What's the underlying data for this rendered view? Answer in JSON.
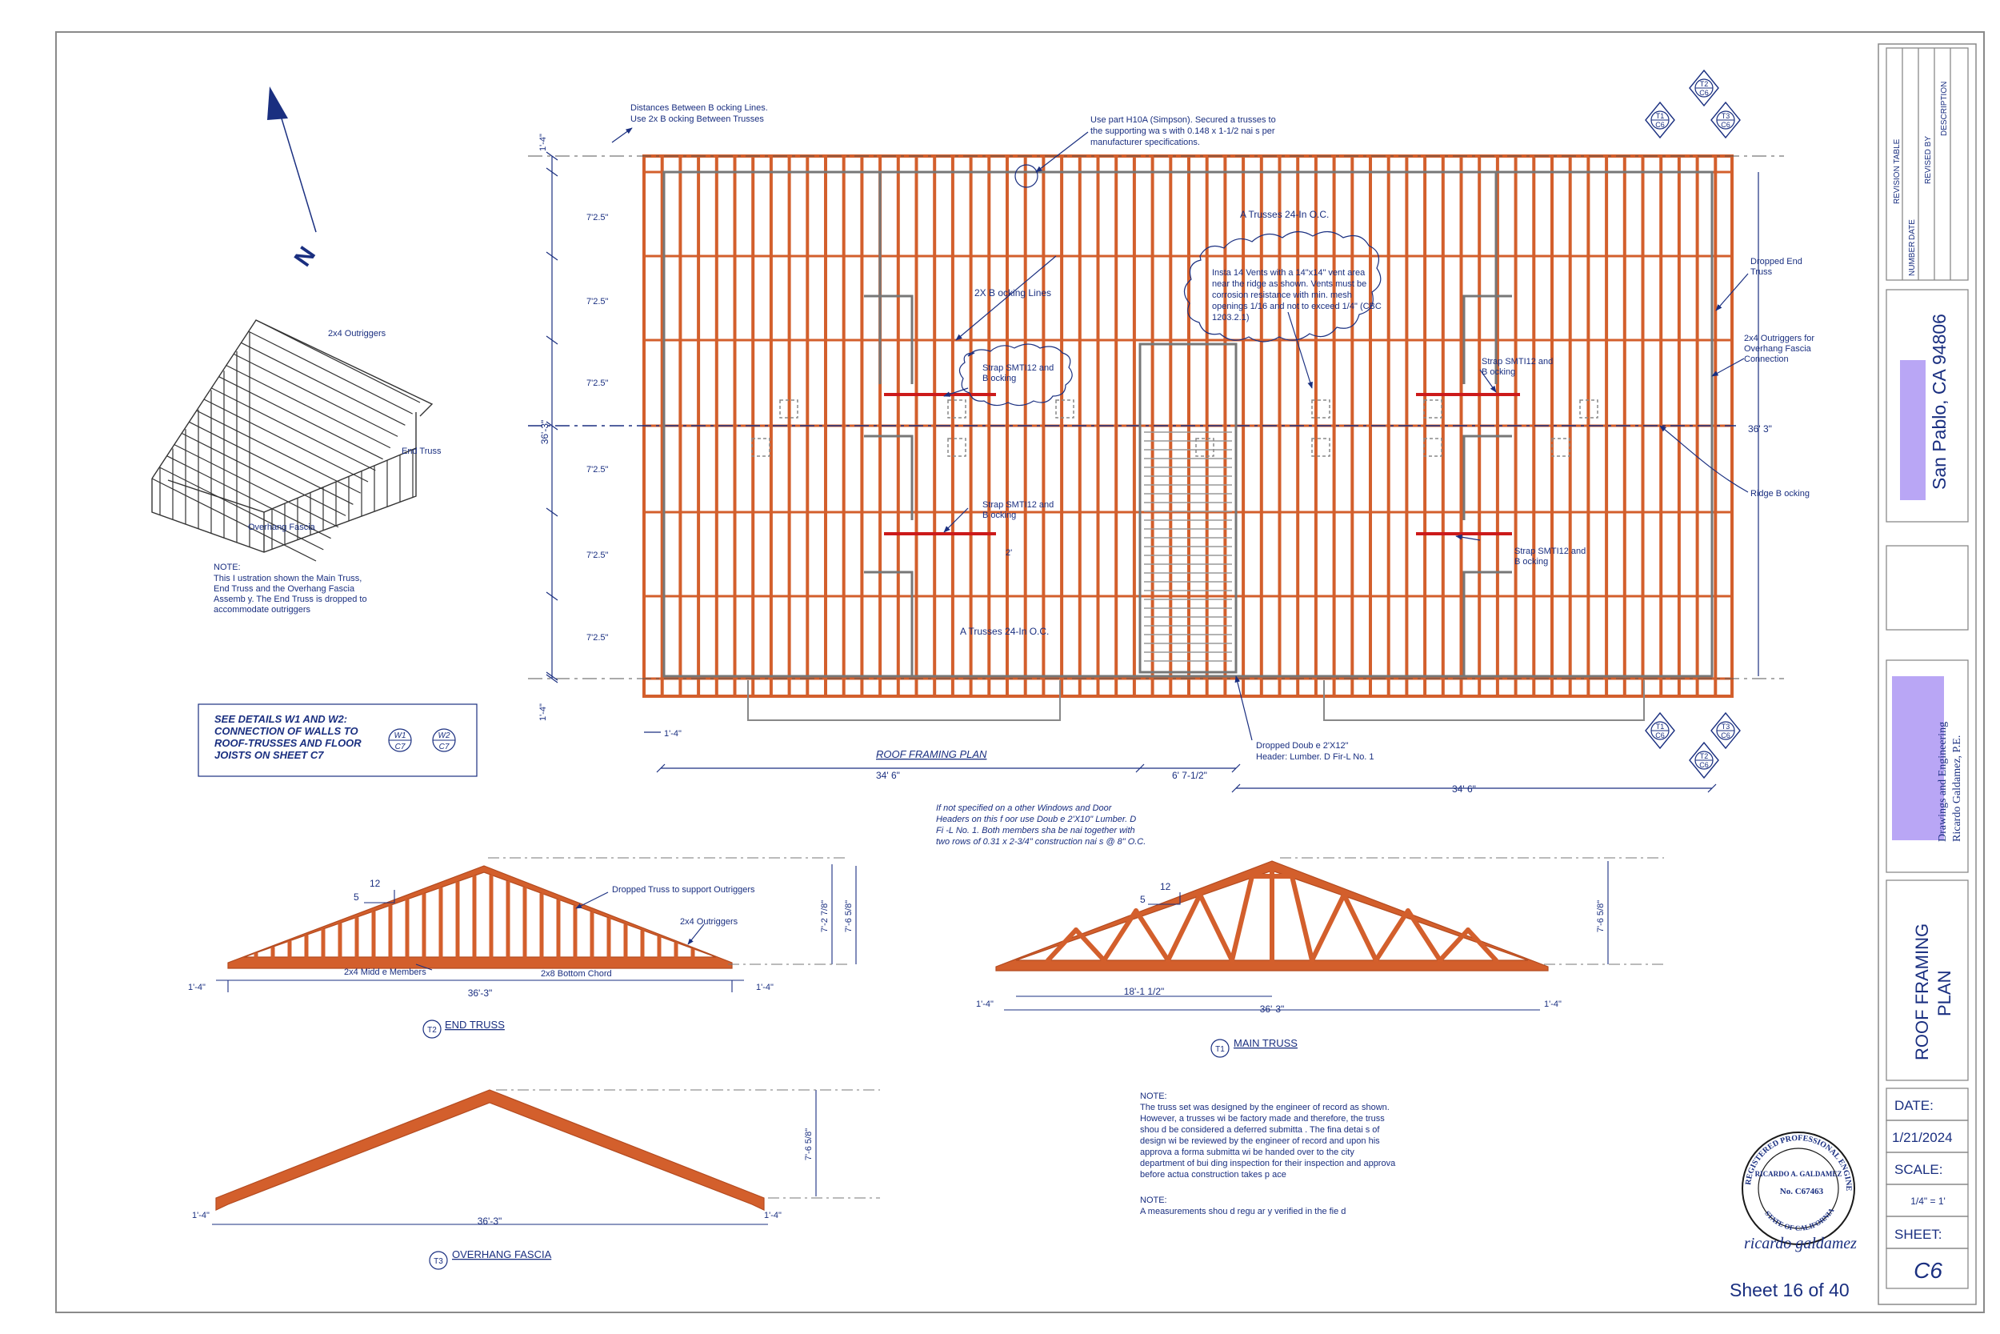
{
  "plan": {
    "title": "ROOF FRAMING PLAN",
    "notes": {
      "blocking_distances": [
        "Distances Between B ocking Lines.",
        "Use 2x B ocking Between Trusses"
      ],
      "h10a": [
        "Use part H10A (Simpson). Secured a trusses to",
        "the supporting wa s with 0.148 x 1-1/2 nai s per",
        "manufacturer specifications."
      ],
      "trusses_top": "A Trusses 24-In O.C.",
      "trusses_bottom": "A Trusses 24-In O.C.",
      "vents": [
        "Insta 14 Vents with a 14\"x14\" vent area",
        "near the ridge as shown. Vents must be",
        "corrosion resistance with min. mesh",
        "openings 1/16 and not to exceed 1/4\" (CBC",
        "1203.2.1)"
      ],
      "blocking_lines": "2X B ocking Lines",
      "strap1": [
        "Strap SMTI12 and",
        "B ocking"
      ],
      "strap2": [
        "Strap SMTI12 and",
        "B ocking"
      ],
      "strap3": [
        "Strap SMTI12 and",
        "B ocking"
      ],
      "strap4": [
        "Strap SMTI12 and",
        "B ocking"
      ],
      "dropped_end_truss": [
        "Dropped End",
        "Truss"
      ],
      "outriggers_fascia": [
        "2x4 Outriggers for",
        "Overhang Fascia",
        "Connection"
      ],
      "ridge_blocking": "Ridge B ocking",
      "dropped_header": [
        "Dropped Doub e 2'X12\"",
        "Header: Lumber. D Fir-L No. 1"
      ],
      "headers_note": [
        "If not specified on a other Windows and Door",
        "Headers on this f oor use Doub e 2'X10\" Lumber. D",
        "Fi -L No. 1. Both members sha be nai together with",
        "two rows of 0.31 x 2-3/4\" construction nai s @ 8\" O.C."
      ],
      "strap_dim": "2'"
    },
    "dims": {
      "left_total": "36'-3\"",
      "spacing": [
        "7'2.5\"",
        "7'2.5\"",
        "7'2.5\"",
        "7'2.5\"",
        "7'2.5\"",
        "7'2.5\""
      ],
      "overhang_top": "1'-4\"",
      "overhang_bottom": "1'-4\"",
      "overhang_left": "1'-4\"",
      "bottom_left": "34' 6\"",
      "bottom_mid": "6' 7-1/2\"",
      "bottom_right": "34' 6\"",
      "right_total": "36' 3\""
    },
    "markers": [
      {
        "top": "T1",
        "bottom": "C6"
      },
      {
        "top": "T2",
        "bottom": "C6"
      },
      {
        "top": "T3",
        "bottom": "C6"
      },
      {
        "top": "T1",
        "bottom": "C6"
      },
      {
        "top": "T3",
        "bottom": "C6"
      },
      {
        "top": "T2",
        "bottom": "C6"
      }
    ]
  },
  "iso": {
    "outriggers": "2x4 Outriggers",
    "end_truss": "End Truss",
    "overhang_fascia": "Overhang Fascia",
    "note_title": "NOTE:",
    "note_lines": [
      "This I ustration shown the Main Truss,",
      "End Truss and the Overhang Fascia",
      "Assemb y. The End Truss is dropped to",
      "accommodate outriggers"
    ]
  },
  "details_box": {
    "lines": [
      "SEE DETAILS W1 AND W2:",
      "CONNECTION OF WALLS TO",
      "ROOF-TRUSSES AND FLOOR",
      "JOISTS ON SHEET C7"
    ],
    "w1": {
      "top": "W1",
      "bottom": "C7"
    },
    "w2": {
      "top": "W2",
      "bottom": "C7"
    }
  },
  "end_truss": {
    "id": "T2",
    "title": "END TRUSS",
    "pitch_run": "12",
    "pitch_rise": "5",
    "height": "7'-2 7/8\"",
    "height2": "7'-6 5/8\"",
    "span": "36'-3\"",
    "overhang_left": "1'-4\"",
    "overhang_right": "1'-4\"",
    "dropped": "Dropped Truss to support Outriggers",
    "outriggers": "2x4 Outriggers",
    "middle": "2x4 Midd e Members",
    "bottom_chord": "2x8 Bottom Chord"
  },
  "main_truss": {
    "id": "T1",
    "title": "MAIN TRUSS",
    "pitch_run": "12",
    "pitch_rise": "5",
    "height": "7'-6 5/8\"",
    "half_span": "18'-1 1/2\"",
    "span": "36'-3\"",
    "overhang_left": "1'-4\"",
    "overhang_right": "1'-4\""
  },
  "fascia": {
    "id": "T3",
    "title": "OVERHANG FASCIA",
    "height": "7'-6 5/8\"",
    "span": "36'-3\"",
    "overhang_left": "1'-4\"",
    "overhang_right": "1'-4\""
  },
  "notes_block": {
    "title1": "NOTE:",
    "lines1": [
      "The truss set was designed by the engineer of record as shown.",
      "However, a trusses wi be factory made and therefore, the truss",
      "shou d be considered a deferred submitta . The fina detai s of",
      "design wi be reviewed by the engineer of record and upon his",
      "approva a forma submitta wi be handed over to the city",
      "department of bui ding inspection for their inspection and approva",
      "before actua construction takes p ace"
    ],
    "title2": "NOTE:",
    "lines2": [
      "A measurements shou d regu ar y verified in the fie d"
    ]
  },
  "north": "N",
  "title_block": {
    "revision_table": "REVISION TABLE",
    "rev_cols": [
      "NUMBER",
      "DATE",
      "REVISED BY",
      "DESCRIPTION"
    ],
    "location": "San Pablo, CA 94806",
    "company": [
      "Drawings and Engineering",
      "Ricardo Galdamez, P.E."
    ],
    "drawing_title": [
      "ROOF FRAMING",
      "PLAN"
    ],
    "date_label": "DATE:",
    "date": "1/21/2024",
    "scale_label": "SCALE:",
    "scale": "1/4\" = 1'",
    "sheet_label": "SHEET:",
    "sheet": "C6",
    "sheet_count": "Sheet 16 of 40"
  },
  "seal": {
    "outer": "REGISTERED PROFESSIONAL ENGINEER",
    "name": "RICARDO A. GALDAMEZ",
    "number": "No. C67463",
    "state": "STATE OF CALIFORNIA",
    "signature": "ricardo galdamez"
  },
  "colors": {
    "lumber": "#d35f2c",
    "lines": "#1a2f80",
    "strap": "#cc1a1a",
    "accent": "#b9a6f5"
  }
}
